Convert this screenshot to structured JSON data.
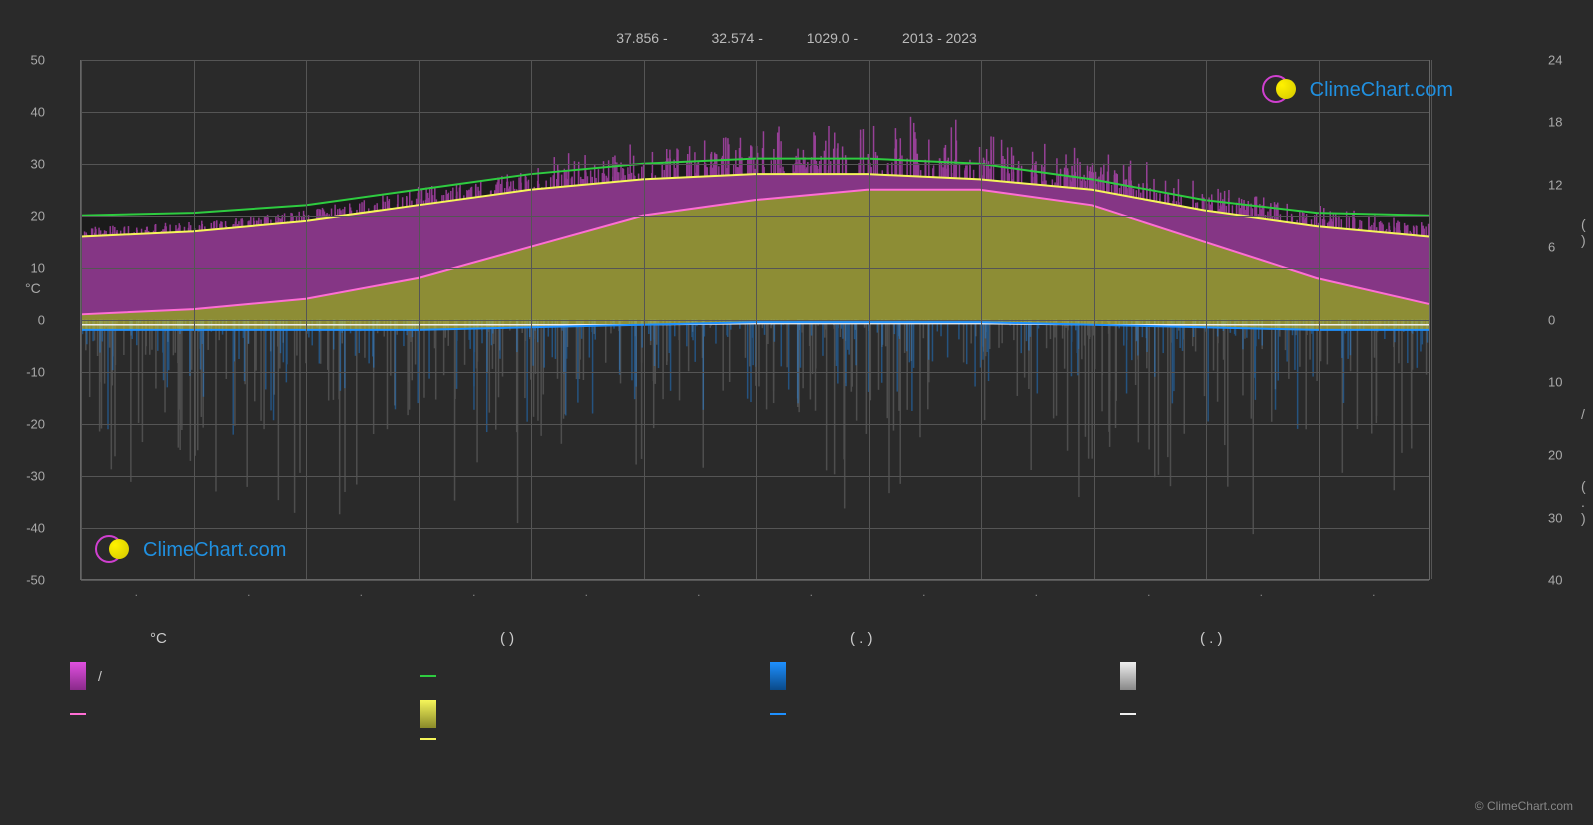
{
  "header": {
    "lat": "37.856 -",
    "lon": "32.574 -",
    "elev": "1029.0 -",
    "years": "2013 - 2023"
  },
  "brand": "ClimeChart.com",
  "copyright": "© ClimeChart.com",
  "chart": {
    "type": "line+area",
    "background_color": "#2a2a2a",
    "grid_color": "#555555",
    "axis_text_color": "#aaaaaa",
    "left_axis": {
      "label": "°C",
      "min": -50,
      "max": 50,
      "step": 10,
      "ticks": [
        50,
        40,
        30,
        20,
        10,
        0,
        -10,
        -20,
        -30,
        -40,
        -50
      ]
    },
    "right_axis": {
      "label_top": "( )",
      "label_mid": "/",
      "label_bot": "( . )",
      "ticks": [
        24,
        18,
        12,
        6,
        0,
        10,
        20,
        30,
        40
      ]
    },
    "x_axis": {
      "months": 12,
      "labels": [
        "",
        "",
        "",
        "",
        "",
        "",
        "",
        "",
        "",
        "",
        "",
        ""
      ]
    },
    "lines": {
      "green": {
        "color": "#2ecc40",
        "width": 2,
        "data": [
          20,
          20.5,
          22,
          25,
          28,
          30,
          31,
          31,
          30,
          27,
          23,
          20.5,
          20
        ]
      },
      "yellow": {
        "color": "#f5f55a",
        "width": 2,
        "data": [
          16,
          17,
          19,
          22,
          25,
          27,
          28,
          28,
          27,
          25,
          21,
          18,
          16
        ]
      },
      "pink": {
        "color": "#ff6ed4",
        "width": 2,
        "data": [
          1,
          2,
          4,
          8,
          14,
          20,
          23,
          25,
          25,
          22,
          15,
          8,
          3
        ]
      },
      "blue": {
        "color": "#1e90ff",
        "width": 2,
        "data": [
          -2,
          -2,
          -2,
          -2,
          -1.5,
          -1,
          -0.5,
          -0.5,
          -0.5,
          -1,
          -1.5,
          -2,
          -2
        ]
      },
      "white": {
        "color": "#eeeeee",
        "width": 1.5,
        "data": [
          -1,
          -1,
          -1,
          -1,
          -1,
          -1,
          -0.8,
          -0.8,
          -0.8,
          -1,
          -1,
          -1,
          -1
        ]
      }
    },
    "fills": {
      "dark_band": {
        "color": "#1a1a1a",
        "opacity": 0.9,
        "top_line": "green",
        "bot_line": "yellow"
      },
      "magenta_band": {
        "color": "#d040d0",
        "opacity": 0.55,
        "top_line": "yellow",
        "bot_line": "pink"
      },
      "olive_band": {
        "color": "#b8b83a",
        "opacity": 0.7,
        "top_line": "pink",
        "bot_line": "blue"
      },
      "magenta_peak": {
        "color": "#e050e0",
        "opacity": 0.6
      }
    },
    "noise_bars": {
      "blue_precip": {
        "color": "#1e90ff",
        "opacity": 0.4
      },
      "grey_precip": {
        "color": "#bbbbbb",
        "opacity": 0.25
      }
    }
  },
  "legend": {
    "headers": [
      "°C",
      "(       )",
      "(  . )",
      "(  . )"
    ],
    "items": [
      [
        {
          "type": "box",
          "color_top": "#e050e0",
          "color_bot": "#8a2a8a",
          "label": "/"
        },
        {
          "type": "line",
          "color": "#ff6ed4",
          "label": ""
        }
      ],
      [
        {
          "type": "line",
          "color": "#2ecc40",
          "label": ""
        },
        {
          "type": "box",
          "color_top": "#f5f55a",
          "color_bot": "#8a8a2a",
          "label": ""
        },
        {
          "type": "line",
          "color": "#f5f55a",
          "label": ""
        }
      ],
      [
        {
          "type": "box",
          "color_top": "#1e90ff",
          "color_bot": "#0a4a8a",
          "label": ""
        },
        {
          "type": "line",
          "color": "#1e90ff",
          "label": ""
        }
      ],
      [
        {
          "type": "box",
          "color_top": "#eeeeee",
          "color_bot": "#888888",
          "label": ""
        },
        {
          "type": "line",
          "color": "#eeeeee",
          "label": ""
        }
      ]
    ]
  }
}
